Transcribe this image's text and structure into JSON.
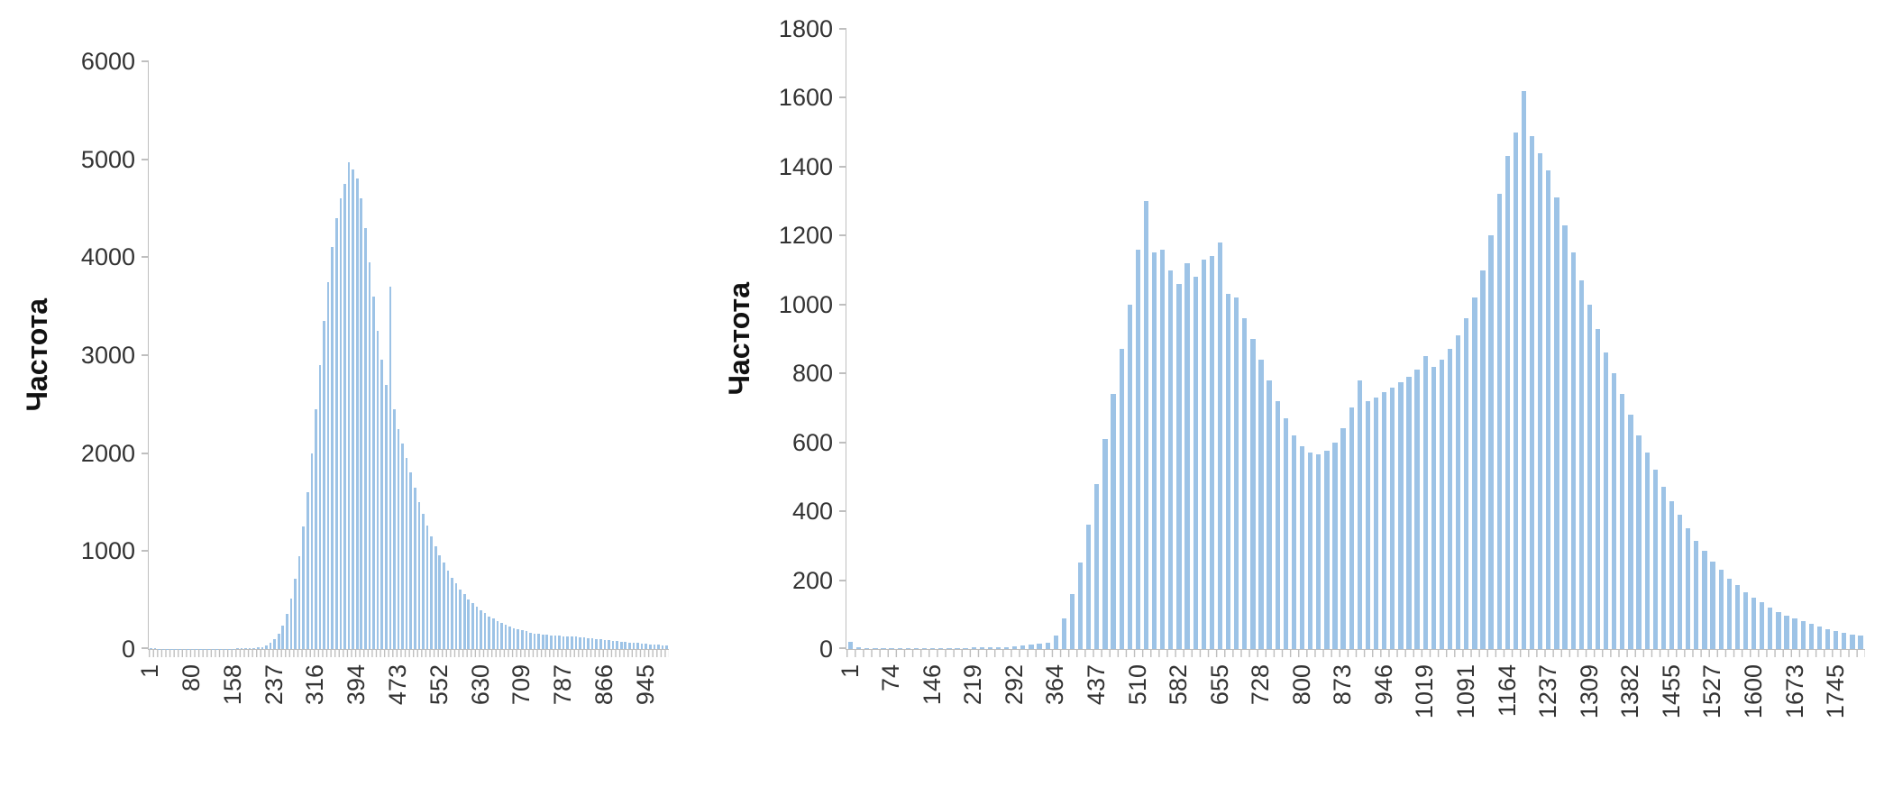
{
  "page": {
    "background": "#ffffff"
  },
  "chart_data": [
    {
      "type": "bar",
      "title": "",
      "ylabel": "Частота",
      "xlabel": "",
      "ylim": [
        0,
        6000
      ],
      "yticks": [
        0,
        1000,
        2000,
        3000,
        4000,
        5000,
        6000
      ],
      "x_tick_labels": [
        "1",
        "80",
        "158",
        "237",
        "316",
        "394",
        "473",
        "552",
        "630",
        "709",
        "787",
        "866",
        "945"
      ],
      "label_every": 10,
      "bar_color": "#9DC3E6",
      "axis_color": "#BFBFBF",
      "text_color": "#333333",
      "grid": false,
      "legend": "none",
      "values": [
        8,
        5,
        4,
        3,
        3,
        2,
        2,
        3,
        2,
        2,
        3,
        2,
        3,
        2,
        3,
        3,
        2,
        3,
        3,
        4,
        4,
        5,
        5,
        6,
        8,
        10,
        14,
        20,
        35,
        60,
        100,
        160,
        240,
        360,
        520,
        720,
        950,
        1250,
        1600,
        2000,
        2450,
        2900,
        3350,
        3750,
        4100,
        4400,
        4600,
        4750,
        4970,
        4900,
        4800,
        4600,
        4300,
        3950,
        3600,
        3250,
        2950,
        2700,
        3700,
        2450,
        2250,
        2100,
        1950,
        1800,
        1650,
        1500,
        1380,
        1260,
        1150,
        1050,
        960,
        880,
        800,
        730,
        670,
        610,
        560,
        510,
        470,
        430,
        395,
        365,
        335,
        310,
        285,
        265,
        245,
        230,
        215,
        200,
        190,
        180,
        170,
        160,
        155,
        150,
        145,
        140,
        138,
        135,
        133,
        130,
        128,
        125,
        122,
        120,
        115,
        110,
        105,
        100,
        95,
        90,
        85,
        80,
        75,
        72,
        68,
        64,
        60,
        56,
        52,
        48,
        45,
        42,
        40,
        38
      ]
    },
    {
      "type": "bar",
      "title": "",
      "ylabel": "Частота",
      "xlabel": "",
      "ylim": [
        0,
        1800
      ],
      "yticks": [
        0,
        200,
        400,
        600,
        800,
        1000,
        1200,
        1400,
        1600,
        1800
      ],
      "x_tick_labels": [
        "1",
        "74",
        "146",
        "219",
        "292",
        "364",
        "437",
        "510",
        "582",
        "655",
        "728",
        "800",
        "873",
        "946",
        "1019",
        "1091",
        "1164",
        "1237",
        "1309",
        "1382",
        "1455",
        "1527",
        "1600",
        "1673",
        "1745"
      ],
      "label_every": 5,
      "bar_color": "#9DC3E6",
      "axis_color": "#BFBFBF",
      "text_color": "#333333",
      "grid": false,
      "legend": "none",
      "values": [
        20,
        4,
        3,
        3,
        2,
        2,
        3,
        2,
        3,
        2,
        3,
        3,
        2,
        3,
        3,
        4,
        4,
        5,
        5,
        6,
        8,
        10,
        12,
        15,
        18,
        40,
        90,
        160,
        250,
        360,
        480,
        610,
        740,
        870,
        1000,
        1160,
        1300,
        1150,
        1160,
        1100,
        1060,
        1120,
        1080,
        1130,
        1140,
        1180,
        1030,
        1020,
        960,
        900,
        840,
        780,
        720,
        670,
        620,
        590,
        570,
        565,
        575,
        600,
        640,
        700,
        780,
        720,
        730,
        745,
        760,
        775,
        790,
        810,
        850,
        820,
        840,
        870,
        910,
        960,
        1020,
        1100,
        1200,
        1320,
        1430,
        1500,
        1620,
        1490,
        1440,
        1390,
        1310,
        1230,
        1150,
        1070,
        1000,
        930,
        860,
        800,
        740,
        680,
        620,
        570,
        520,
        470,
        430,
        390,
        350,
        315,
        285,
        255,
        230,
        205,
        185,
        165,
        150,
        135,
        120,
        108,
        97,
        88,
        80,
        72,
        65,
        58,
        52,
        47,
        42,
        38
      ]
    }
  ]
}
